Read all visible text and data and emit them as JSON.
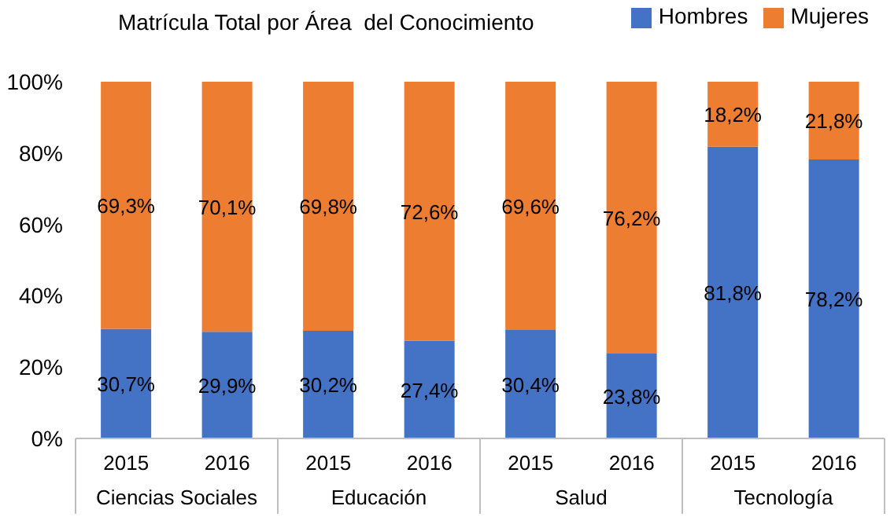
{
  "chart_data": {
    "type": "bar",
    "title": "Matrícula Total por Área  del Conocimiento",
    "stacked": true,
    "legend": "top right",
    "categories": [
      "2015",
      "2016",
      "2015",
      "2016",
      "2015",
      "2016",
      "2015",
      "2016"
    ],
    "annotations": [
      "Ciencias Sociales",
      "Educación",
      "Salud",
      "Tecnología"
    ],
    "series": [
      {
        "name": "Hombres",
        "color": "#4472c4",
        "values": [
          30.7,
          29.9,
          30.2,
          27.4,
          30.4,
          23.8,
          81.8,
          78.2
        ],
        "value_labels": [
          "30,7%",
          "29,9%",
          "30,2%",
          "27,4%",
          "30,4%",
          "23,8%",
          "81,8%",
          "78,2%"
        ]
      },
      {
        "name": "Mujeres",
        "color": "#ed7d31",
        "values": [
          69.3,
          70.1,
          69.8,
          72.6,
          69.6,
          76.2,
          18.2,
          21.8
        ],
        "value_labels": [
          "69,3%",
          "70,1%",
          "69,8%",
          "72,6%",
          "69,6%",
          "76,2%",
          "18,2%",
          "21,8%"
        ]
      }
    ],
    "ylim": [
      0,
      100
    ],
    "yticks": [
      {
        "value": 0,
        "label": "0%"
      },
      {
        "value": 20,
        "label": "20%"
      },
      {
        "value": 40,
        "label": "40%"
      },
      {
        "value": 60,
        "label": "60%"
      },
      {
        "value": 80,
        "label": "80%"
      },
      {
        "value": 100,
        "label": "100%"
      }
    ]
  }
}
